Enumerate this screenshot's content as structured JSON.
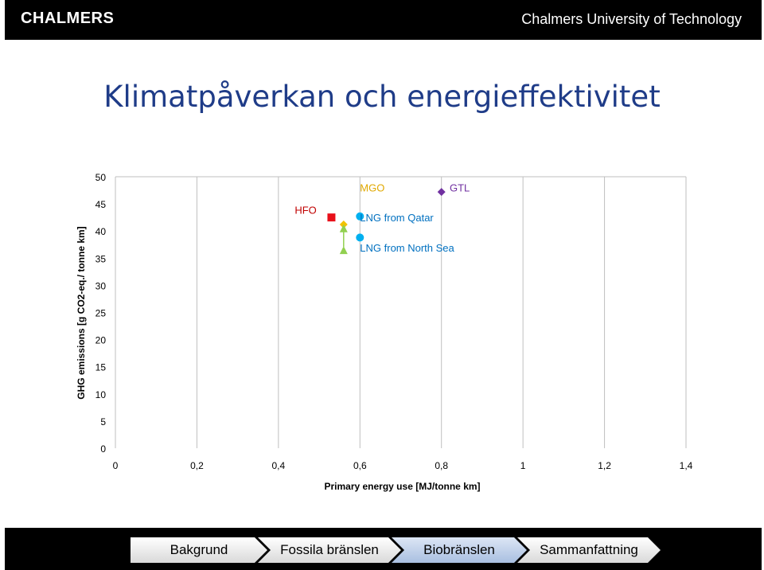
{
  "header": {
    "brand": "CHALMERS",
    "org": "Chalmers University of Technology"
  },
  "slide_title": "Klimatpåverkan och energieffektivitet",
  "chart_data": {
    "type": "scatter",
    "title": "",
    "xlabel": "Primary energy use [MJ/tonne km]",
    "ylabel": "GHG emissions [g CO2-eq./ tonne km]",
    "xlim": [
      0,
      1.4
    ],
    "ylim": [
      0,
      50
    ],
    "x_ticks": [
      "0",
      "0,2",
      "0,4",
      "0,6",
      "0,8",
      "1",
      "1,2",
      "1,4"
    ],
    "y_ticks": [
      "0",
      "5",
      "10",
      "15",
      "20",
      "25",
      "30",
      "35",
      "40",
      "45",
      "50"
    ],
    "grid": "vertical",
    "series": [
      {
        "name": "HFO",
        "marker": "square",
        "color": "#e8101a",
        "label_color": "#c00000",
        "points": [
          [
            0.53,
            42.5
          ]
        ]
      },
      {
        "name": "MGO",
        "marker": "diamond",
        "color": "#f2c200",
        "label_color": "#e0a800",
        "points": [
          [
            0.56,
            41.2
          ]
        ]
      },
      {
        "name": "LNG from Qatar",
        "marker": "circle",
        "color": "#00b0f0",
        "label_color": "#0070c0",
        "points": [
          [
            0.6,
            42.7
          ]
        ]
      },
      {
        "name": "LNG from North Sea",
        "marker": "circle",
        "color": "#00b0f0",
        "label_color": "#0070c0",
        "points": [
          [
            0.6,
            38.8
          ]
        ]
      },
      {
        "name": "GTL",
        "marker": "diamond",
        "color": "#7030a0",
        "label_color": "#7030a0",
        "points": [
          [
            0.8,
            47.2
          ]
        ]
      },
      {
        "name": "",
        "marker": "triangle",
        "color": "#92d050",
        "label_color": "",
        "points": [
          [
            0.56,
            40.5
          ],
          [
            0.56,
            36.5
          ]
        ]
      }
    ],
    "point_labels": [
      {
        "text": "HFO",
        "x": 0.44,
        "y": 43.2,
        "color": "#c00000"
      },
      {
        "text": "MGO",
        "x": 0.6,
        "y": 47.3,
        "color": "#e0a800"
      },
      {
        "text": "GTL",
        "x": 0.82,
        "y": 47.3,
        "color": "#7030a0"
      },
      {
        "text": "LNG from Qatar",
        "x": 0.6,
        "y": 41.8,
        "color": "#0070c0"
      },
      {
        "text": "LNG from North Sea",
        "x": 0.6,
        "y": 36.2,
        "color": "#0070c0"
      }
    ]
  },
  "footer_nav": {
    "items": [
      {
        "label": "Bakgrund"
      },
      {
        "label": "Fossila bränslen"
      },
      {
        "label": "Biobränslen"
      },
      {
        "label": "Sammanfattning"
      }
    ]
  }
}
